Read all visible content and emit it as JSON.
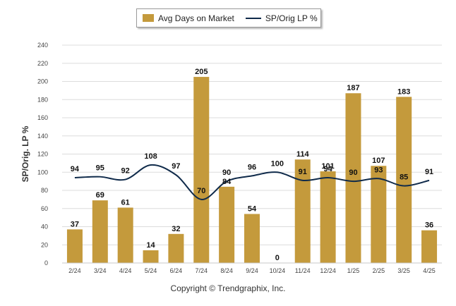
{
  "chart_data": {
    "type": "bar",
    "categories": [
      "2/24",
      "3/24",
      "4/24",
      "5/24",
      "6/24",
      "7/24",
      "8/24",
      "9/24",
      "10/24",
      "11/24",
      "12/24",
      "1/25",
      "2/25",
      "3/25",
      "4/25"
    ],
    "series": [
      {
        "name": "Avg Days on Market",
        "type": "bar",
        "color": "#C49A3C",
        "values": [
          37,
          69,
          61,
          14,
          32,
          205,
          84,
          54,
          0,
          114,
          101,
          187,
          107,
          183,
          36
        ]
      },
      {
        "name": "SP/Orig LP %",
        "type": "line",
        "color": "#0F2A4A",
        "values": [
          94,
          95,
          92,
          108,
          97,
          70,
          90,
          96,
          100,
          91,
          94,
          90,
          93,
          85,
          91
        ]
      }
    ],
    "ylabel": "SP/Orig. LP %",
    "ylim": [
      0,
      240
    ],
    "yticks": [
      0,
      20,
      40,
      60,
      80,
      100,
      120,
      140,
      160,
      180,
      200,
      220,
      240
    ],
    "grid": true,
    "legend_position": "top-center"
  },
  "legend": {
    "bar_label": "Avg Days on Market",
    "line_label": "SP/Orig LP %"
  },
  "footer": {
    "copyright": "Copyright © Trendgraphix, Inc."
  }
}
